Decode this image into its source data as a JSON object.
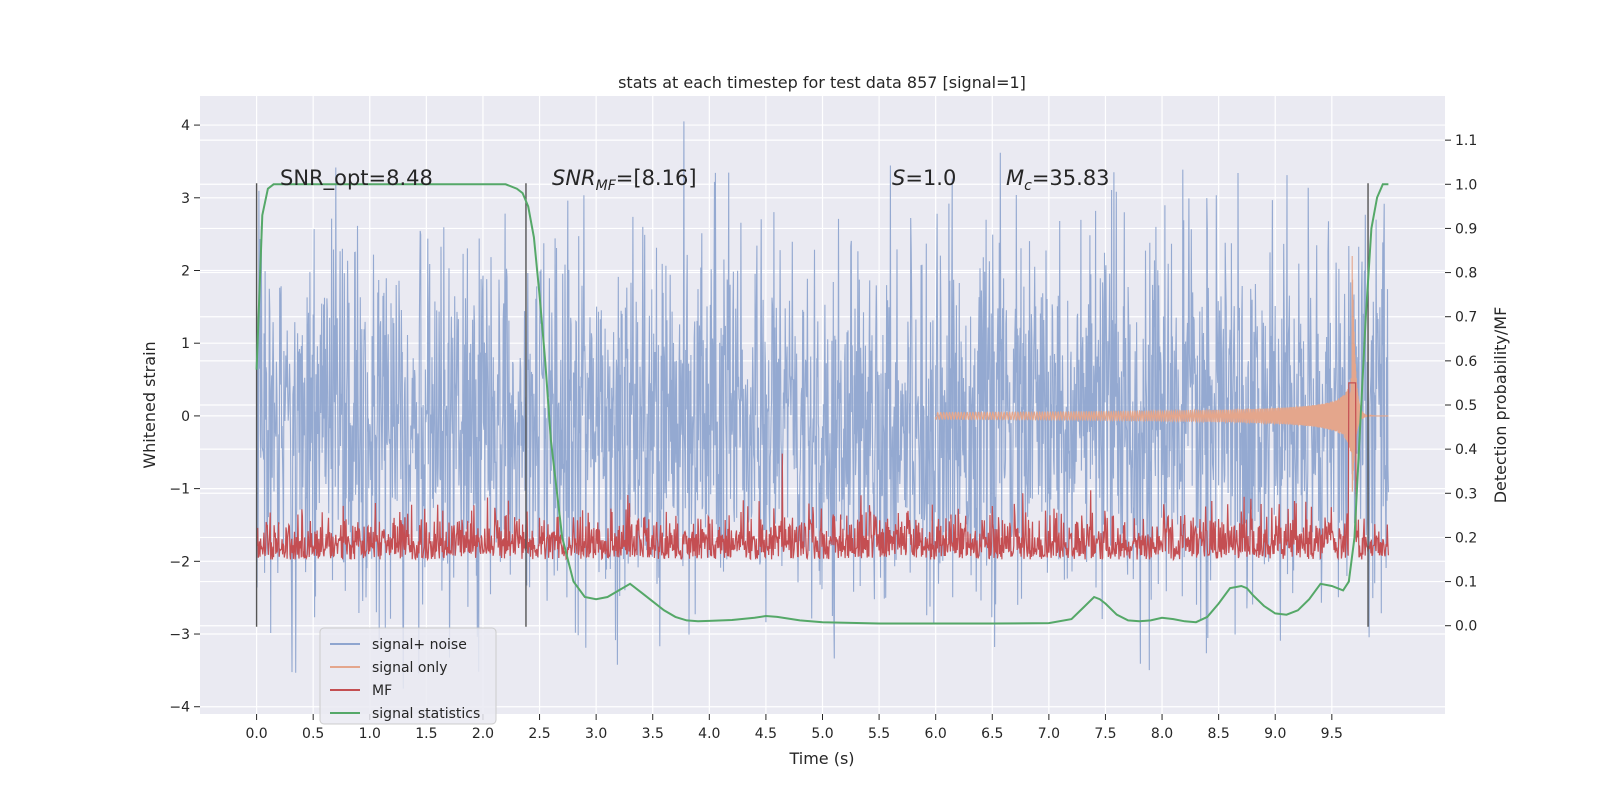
{
  "chart_data": {
    "type": "line",
    "title": "stats at each timestep for test data 857 [signal=1]",
    "xlabel": "Time (s)",
    "ylabel": "Whitened strain",
    "ylabel_right": "Detection probability/MF",
    "xlim": [
      -0.5,
      10.5
    ],
    "ylim": [
      -4.1,
      4.4
    ],
    "ylim_right": [
      -0.2,
      1.2
    ],
    "x_ticks": [
      "0.0",
      "0.5",
      "1.0",
      "1.5",
      "2.0",
      "2.5",
      "3.0",
      "3.5",
      "4.0",
      "4.5",
      "5.0",
      "5.5",
      "6.0",
      "6.5",
      "7.0",
      "7.5",
      "8.0",
      "8.5",
      "9.0",
      "9.5"
    ],
    "y_ticks": [
      "4",
      "3",
      "2",
      "1",
      "0",
      "−1",
      "−2",
      "−3",
      "−4"
    ],
    "y_ticks_right": [
      "1.1",
      "1.0",
      "0.9",
      "0.8",
      "0.7",
      "0.6",
      "0.5",
      "0.4",
      "0.3",
      "0.2",
      "0.1",
      "0.0"
    ],
    "grid": true,
    "legend_position": "lower-left",
    "annotations": {
      "snr_opt": "SNR_opt=8.48",
      "snr_mf_sym": "SNR",
      "snr_mf_sub": "MF",
      "snr_mf_val": "=[8.16]",
      "s_sym": "S",
      "s_val": "=1.0",
      "mc_sym": "M",
      "mc_sub": "c",
      "mc_val": "=35.83"
    },
    "vlines_x": [
      0.0,
      2.38,
      9.82
    ],
    "vlines_y": [
      -2.9,
      3.2
    ],
    "series": [
      {
        "name": "signal+ noise",
        "color": "#8fa5cf",
        "noise_level": 1.2
      },
      {
        "name": "signal only",
        "color": "#e4a68c",
        "chirp_end": 9.68
      },
      {
        "name": "MF",
        "color": "#c44e52",
        "baseline": 0.12
      },
      {
        "name": "signal statistics",
        "color": "#55a868",
        "axis": "right",
        "x": [
          0.0,
          0.05,
          0.1,
          0.15,
          0.2,
          0.3,
          0.5,
          1.0,
          1.5,
          2.0,
          2.1,
          2.2,
          2.3,
          2.35,
          2.4,
          2.45,
          2.5,
          2.55,
          2.6,
          2.7,
          2.8,
          2.9,
          3.0,
          3.1,
          3.2,
          3.3,
          3.4,
          3.5,
          3.6,
          3.7,
          3.8,
          3.9,
          4.0,
          4.2,
          4.4,
          4.5,
          4.6,
          4.8,
          5.0,
          5.5,
          6.0,
          6.5,
          7.0,
          7.2,
          7.3,
          7.4,
          7.45,
          7.5,
          7.6,
          7.7,
          7.8,
          7.9,
          8.0,
          8.1,
          8.2,
          8.3,
          8.4,
          8.5,
          8.6,
          8.7,
          8.75,
          8.8,
          8.9,
          9.0,
          9.1,
          9.2,
          9.3,
          9.4,
          9.5,
          9.55,
          9.6,
          9.65,
          9.7,
          9.75,
          9.8,
          9.85,
          9.9,
          9.95,
          10.0
        ],
        "y": [
          0.58,
          0.93,
          0.99,
          1.0,
          1.0,
          1.0,
          1.0,
          1.0,
          1.0,
          1.0,
          1.0,
          1.0,
          0.99,
          0.98,
          0.95,
          0.88,
          0.75,
          0.6,
          0.42,
          0.2,
          0.1,
          0.065,
          0.06,
          0.065,
          0.08,
          0.095,
          0.075,
          0.055,
          0.035,
          0.02,
          0.012,
          0.01,
          0.011,
          0.013,
          0.018,
          0.022,
          0.02,
          0.012,
          0.008,
          0.005,
          0.005,
          0.005,
          0.006,
          0.015,
          0.04,
          0.065,
          0.06,
          0.05,
          0.025,
          0.012,
          0.01,
          0.012,
          0.018,
          0.015,
          0.01,
          0.008,
          0.02,
          0.05,
          0.085,
          0.09,
          0.085,
          0.07,
          0.045,
          0.028,
          0.025,
          0.035,
          0.06,
          0.095,
          0.09,
          0.085,
          0.08,
          0.1,
          0.2,
          0.45,
          0.7,
          0.9,
          0.97,
          1.0,
          1.0
        ]
      }
    ]
  }
}
